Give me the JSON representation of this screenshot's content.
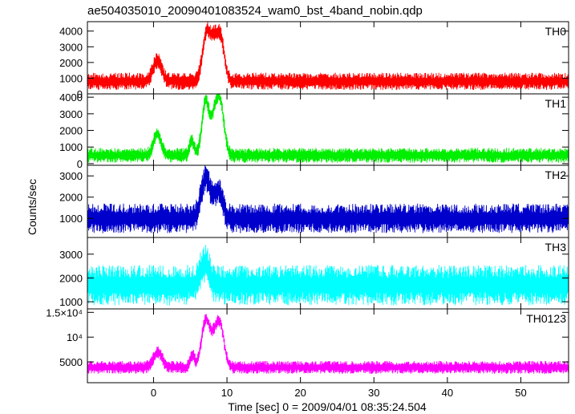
{
  "chart_data": {
    "type": "line",
    "title": "ae504035010_20090401083524_wam0_bst_4band_nobin.qdp",
    "xlabel": "Time [sec] 0 = 2009/04/01 08:35:24.504",
    "ylabel": "Counts/sec",
    "xlim": [
      -9,
      56.5
    ],
    "xticks": [
      {
        "value": 0,
        "label": "0"
      },
      {
        "value": 10,
        "label": "10"
      },
      {
        "value": 20,
        "label": "20"
      },
      {
        "value": 30,
        "label": "30"
      },
      {
        "value": 40,
        "label": "40"
      },
      {
        "value": 50,
        "label": "50"
      }
    ],
    "grid": false,
    "legend": "none",
    "panels": [
      {
        "name": "TH0",
        "color": "#ff0000",
        "ylim": [
          0,
          4600
        ],
        "yticks": [
          {
            "value": 0,
            "label": "0"
          },
          {
            "value": 1000,
            "label": "1000"
          },
          {
            "value": 2000,
            "label": "2000"
          },
          {
            "value": 3000,
            "label": "3000"
          },
          {
            "value": 4000,
            "label": "4000"
          }
        ],
        "baseline": 800,
        "noise": 550,
        "events": [
          {
            "t": 0.5,
            "peak": 1300,
            "width": 0.6
          },
          {
            "t": 7.2,
            "peak": 2900,
            "width": 0.55
          },
          {
            "t": 8.3,
            "peak": 2200,
            "width": 0.55
          },
          {
            "t": 9.2,
            "peak": 2300,
            "width": 0.5
          }
        ]
      },
      {
        "name": "TH1",
        "color": "#00ee00",
        "ylim": [
          -100,
          4200
        ],
        "yticks": [
          {
            "value": 0,
            "label": "0"
          },
          {
            "value": 1000,
            "label": "1000"
          },
          {
            "value": 2000,
            "label": "2000"
          },
          {
            "value": 3000,
            "label": "3000"
          },
          {
            "value": 4000,
            "label": "4000"
          }
        ],
        "baseline": 500,
        "noise": 450,
        "events": [
          {
            "t": 0.5,
            "peak": 1300,
            "width": 0.5
          },
          {
            "t": 5.2,
            "peak": 900,
            "width": 0.3
          },
          {
            "t": 7.1,
            "peak": 3200,
            "width": 0.5
          },
          {
            "t": 8.4,
            "peak": 2400,
            "width": 0.5
          },
          {
            "t": 9.2,
            "peak": 2500,
            "width": 0.5
          }
        ]
      },
      {
        "name": "TH2",
        "color": "#0000cc",
        "ylim": [
          100,
          3500
        ],
        "yticks": [
          {
            "value": 1000,
            "label": "1000"
          },
          {
            "value": 2000,
            "label": "2000"
          },
          {
            "value": 3000,
            "label": "3000"
          }
        ],
        "baseline": 1000,
        "noise": 700,
        "events": [
          {
            "t": 7.1,
            "peak": 1900,
            "width": 0.6
          },
          {
            "t": 8.8,
            "peak": 1300,
            "width": 0.6
          }
        ]
      },
      {
        "name": "TH3",
        "color": "#00ffff",
        "ylim": [
          700,
          3700
        ],
        "yticks": [
          {
            "value": 1000,
            "label": "1000"
          },
          {
            "value": 2000,
            "label": "2000"
          },
          {
            "value": 3000,
            "label": "3000"
          }
        ],
        "baseline": 1700,
        "noise": 850,
        "events": [
          {
            "t": 7.0,
            "peak": 900,
            "width": 0.6
          }
        ]
      },
      {
        "name": "TH0123",
        "color": "#ff00ff",
        "ylim": [
          800,
          15700
        ],
        "yticks": [
          {
            "value": 5000,
            "label": "5000"
          },
          {
            "value": 10000,
            "label": "10⁴"
          },
          {
            "value": 15000,
            "label": "1.5×10⁴"
          }
        ],
        "baseline": 3900,
        "noise": 1300,
        "events": [
          {
            "t": 0.6,
            "peak": 3000,
            "width": 0.6
          },
          {
            "t": 5.3,
            "peak": 2500,
            "width": 0.3
          },
          {
            "t": 7.1,
            "peak": 9500,
            "width": 0.55
          },
          {
            "t": 8.4,
            "peak": 6000,
            "width": 0.55
          },
          {
            "t": 9.2,
            "peak": 6500,
            "width": 0.5
          }
        ]
      }
    ]
  }
}
